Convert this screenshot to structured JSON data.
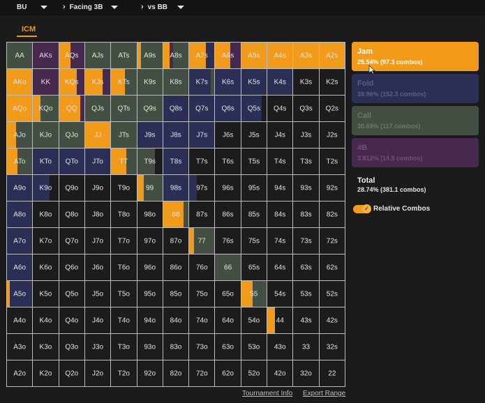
{
  "header": {
    "position": "BU",
    "scenario": "Facing 3B",
    "vs": "vs BB"
  },
  "tab": "ICM",
  "colors": {
    "jam": "#f29a1a",
    "fold": "#2b2f55",
    "call": "#444f44",
    "fourbet": "#48294e",
    "empty": "#1c1c1d"
  },
  "actions": [
    {
      "key": "jam",
      "name": "Jam",
      "pct": "25.54% (97.3 combos)",
      "bg": "#f29a1a",
      "fg": "#ffffff"
    },
    {
      "key": "fold",
      "name": "Fold",
      "pct": "39.96% (152.3 combos)",
      "bg": "#2b2f55",
      "fg": "#5a5f88"
    },
    {
      "key": "call",
      "name": "Call",
      "pct": "30.69% (117 combos)",
      "bg": "#444f44",
      "fg": "#6c776c"
    },
    {
      "key": "fourbet",
      "name": "4B",
      "pct": "3.812% (14.5 combos)",
      "bg": "#48294e",
      "fg": "#70507a"
    }
  ],
  "total": {
    "label": "Total",
    "value": "28.74% (381.1 combos)"
  },
  "toggle": {
    "label": "Relative Combos",
    "on": true
  },
  "footer": {
    "tournament_info": "Tournament Info",
    "export_range": "Export Range"
  },
  "grid": [
    [
      {
        "label": "AA",
        "mix": [
          [
            "call",
            1
          ]
        ]
      },
      {
        "label": "AKs",
        "mix": [
          [
            "fourbet",
            1
          ]
        ]
      },
      {
        "label": "AQs",
        "mix": [
          [
            "jam",
            0.45
          ],
          [
            "fourbet",
            0.55
          ]
        ]
      },
      {
        "label": "AJs",
        "mix": [
          [
            "call",
            1
          ]
        ]
      },
      {
        "label": "ATs",
        "mix": [
          [
            "call",
            1
          ]
        ]
      },
      {
        "label": "A9s",
        "mix": [
          [
            "jam",
            0.15
          ],
          [
            "call",
            0.85
          ]
        ]
      },
      {
        "label": "A8s",
        "mix": [
          [
            "jam",
            0.25
          ],
          [
            "fourbet",
            0.15
          ],
          [
            "call",
            0.6
          ]
        ]
      },
      {
        "label": "A7s",
        "mix": [
          [
            "jam",
            0.65
          ],
          [
            "fold",
            0.35
          ]
        ]
      },
      {
        "label": "A6s",
        "mix": [
          [
            "jam",
            0.6
          ],
          [
            "fourbet",
            0.4
          ]
        ]
      },
      {
        "label": "A5s",
        "mix": [
          [
            "jam",
            1
          ]
        ]
      },
      {
        "label": "A4s",
        "mix": [
          [
            "jam",
            1
          ]
        ]
      },
      {
        "label": "A3s",
        "mix": [
          [
            "jam",
            1
          ]
        ]
      },
      {
        "label": "A2s",
        "mix": [
          [
            "jam",
            1
          ]
        ]
      }
    ],
    [
      {
        "label": "AKo",
        "mix": [
          [
            "jam",
            1
          ]
        ]
      },
      {
        "label": "KK",
        "mix": [
          [
            "fourbet",
            1
          ]
        ]
      },
      {
        "label": "KQs",
        "mix": [
          [
            "jam",
            0.7
          ],
          [
            "fourbet",
            0.3
          ]
        ]
      },
      {
        "label": "KJs",
        "mix": [
          [
            "jam",
            0.7
          ],
          [
            "fourbet",
            0.3
          ]
        ]
      },
      {
        "label": "KTs",
        "mix": [
          [
            "jam",
            0.55
          ],
          [
            "call",
            0.45
          ]
        ]
      },
      {
        "label": "K9s",
        "mix": [
          [
            "call",
            1
          ]
        ]
      },
      {
        "label": "K8s",
        "mix": [
          [
            "call",
            1
          ]
        ]
      },
      {
        "label": "K7s",
        "mix": [
          [
            "fold",
            0.85
          ],
          [
            "call",
            0.15
          ]
        ]
      },
      {
        "label": "K6s",
        "mix": [
          [
            "fold",
            1
          ]
        ]
      },
      {
        "label": "K5s",
        "mix": [
          [
            "fold",
            1
          ]
        ]
      },
      {
        "label": "K4s",
        "mix": [
          [
            "fold",
            1
          ]
        ]
      },
      {
        "label": "K3s",
        "mix": []
      },
      {
        "label": "K2s",
        "mix": []
      }
    ],
    [
      {
        "label": "AQo",
        "mix": [
          [
            "jam",
            1
          ]
        ]
      },
      {
        "label": "KQo",
        "mix": [
          [
            "jam",
            0.3
          ],
          [
            "call",
            0.7
          ]
        ]
      },
      {
        "label": "QQ",
        "mix": [
          [
            "jam",
            0.85
          ],
          [
            "fourbet",
            0.15
          ]
        ]
      },
      {
        "label": "QJs",
        "mix": [
          [
            "call",
            1
          ]
        ]
      },
      {
        "label": "QTs",
        "mix": [
          [
            "call",
            1
          ]
        ]
      },
      {
        "label": "Q9s",
        "mix": [
          [
            "call",
            1
          ]
        ]
      },
      {
        "label": "Q8s",
        "mix": [
          [
            "fold",
            1
          ]
        ]
      },
      {
        "label": "Q7s",
        "mix": [
          [
            "fold",
            1
          ]
        ]
      },
      {
        "label": "Q6s",
        "mix": [
          [
            "fold",
            1
          ]
        ]
      },
      {
        "label": "Q5s",
        "mix": [
          [
            "fold",
            0.8
          ]
        ]
      },
      {
        "label": "Q4s",
        "mix": []
      },
      {
        "label": "Q3s",
        "mix": []
      },
      {
        "label": "Q2s",
        "mix": []
      }
    ],
    [
      {
        "label": "AJo",
        "mix": [
          [
            "jam",
            0.35
          ],
          [
            "call",
            0.65
          ]
        ]
      },
      {
        "label": "KJo",
        "mix": [
          [
            "call",
            1
          ]
        ]
      },
      {
        "label": "QJo",
        "mix": [
          [
            "call",
            1
          ]
        ]
      },
      {
        "label": "JJ",
        "mix": [
          [
            "jam",
            1
          ]
        ]
      },
      {
        "label": "JTs",
        "mix": [
          [
            "call",
            1
          ]
        ]
      },
      {
        "label": "J9s",
        "mix": [
          [
            "fold",
            1
          ]
        ]
      },
      {
        "label": "J8s",
        "mix": [
          [
            "fold",
            1
          ]
        ]
      },
      {
        "label": "J7s",
        "mix": [
          [
            "fold",
            1
          ]
        ]
      },
      {
        "label": "J6s",
        "mix": []
      },
      {
        "label": "J5s",
        "mix": []
      },
      {
        "label": "J4s",
        "mix": []
      },
      {
        "label": "J3s",
        "mix": []
      },
      {
        "label": "J2s",
        "mix": []
      }
    ],
    [
      {
        "label": "ATo",
        "mix": [
          [
            "jam",
            0.4
          ],
          [
            "call",
            0.6
          ]
        ]
      },
      {
        "label": "KTo",
        "mix": [
          [
            "fold",
            1
          ]
        ]
      },
      {
        "label": "QTo",
        "mix": [
          [
            "fold",
            1
          ]
        ]
      },
      {
        "label": "JTo",
        "mix": [
          [
            "fold",
            1
          ]
        ]
      },
      {
        "label": "TT",
        "mix": [
          [
            "jam",
            0.6
          ],
          [
            "call",
            0.4
          ]
        ]
      },
      {
        "label": "T9s",
        "mix": [
          [
            "call",
            0.7
          ]
        ]
      },
      {
        "label": "T8s",
        "mix": [
          [
            "fold",
            1
          ]
        ]
      },
      {
        "label": "T7s",
        "mix": []
      },
      {
        "label": "T6s",
        "mix": []
      },
      {
        "label": "T5s",
        "mix": []
      },
      {
        "label": "T4s",
        "mix": []
      },
      {
        "label": "T3s",
        "mix": []
      },
      {
        "label": "T2s",
        "mix": []
      }
    ],
    [
      {
        "label": "A9o",
        "mix": [
          [
            "fold",
            1
          ]
        ]
      },
      {
        "label": "K9o",
        "mix": [
          [
            "fold",
            0.65
          ]
        ]
      },
      {
        "label": "Q9o",
        "mix": []
      },
      {
        "label": "J9o",
        "mix": []
      },
      {
        "label": "T9o",
        "mix": []
      },
      {
        "label": "99",
        "mix": [
          [
            "jam",
            0.25
          ],
          [
            "call",
            0.75
          ]
        ]
      },
      {
        "label": "98s",
        "mix": [
          [
            "fold",
            1
          ]
        ]
      },
      {
        "label": "97s",
        "mix": [
          [
            "fold",
            0.3
          ]
        ]
      },
      {
        "label": "96s",
        "mix": []
      },
      {
        "label": "95s",
        "mix": []
      },
      {
        "label": "94s",
        "mix": []
      },
      {
        "label": "93s",
        "mix": []
      },
      {
        "label": "92s",
        "mix": []
      }
    ],
    [
      {
        "label": "A8o",
        "mix": [
          [
            "fold",
            1
          ]
        ]
      },
      {
        "label": "K8o",
        "mix": []
      },
      {
        "label": "Q8o",
        "mix": []
      },
      {
        "label": "J8o",
        "mix": []
      },
      {
        "label": "T8o",
        "mix": []
      },
      {
        "label": "98o",
        "mix": []
      },
      {
        "label": "88",
        "mix": [
          [
            "jam",
            0.8
          ],
          [
            "call",
            0.2
          ]
        ]
      },
      {
        "label": "87s",
        "mix": []
      },
      {
        "label": "86s",
        "mix": []
      },
      {
        "label": "85s",
        "mix": []
      },
      {
        "label": "84s",
        "mix": []
      },
      {
        "label": "83s",
        "mix": []
      },
      {
        "label": "82s",
        "mix": []
      }
    ],
    [
      {
        "label": "A7o",
        "mix": [
          [
            "fold",
            1
          ]
        ]
      },
      {
        "label": "K7o",
        "mix": []
      },
      {
        "label": "Q7o",
        "mix": []
      },
      {
        "label": "J7o",
        "mix": []
      },
      {
        "label": "T7o",
        "mix": []
      },
      {
        "label": "97o",
        "mix": []
      },
      {
        "label": "87o",
        "mix": []
      },
      {
        "label": "77",
        "mix": [
          [
            "jam",
            0.2
          ],
          [
            "call",
            0.8
          ]
        ]
      },
      {
        "label": "76s",
        "mix": []
      },
      {
        "label": "75s",
        "mix": []
      },
      {
        "label": "74s",
        "mix": []
      },
      {
        "label": "73s",
        "mix": []
      },
      {
        "label": "72s",
        "mix": []
      }
    ],
    [
      {
        "label": "A6o",
        "mix": [
          [
            "fold",
            1
          ]
        ]
      },
      {
        "label": "K6o",
        "mix": []
      },
      {
        "label": "Q6o",
        "mix": []
      },
      {
        "label": "J6o",
        "mix": []
      },
      {
        "label": "T6o",
        "mix": []
      },
      {
        "label": "96o",
        "mix": []
      },
      {
        "label": "86o",
        "mix": []
      },
      {
        "label": "76o",
        "mix": []
      },
      {
        "label": "66",
        "mix": [
          [
            "call",
            1
          ]
        ]
      },
      {
        "label": "65s",
        "mix": []
      },
      {
        "label": "64s",
        "mix": []
      },
      {
        "label": "63s",
        "mix": []
      },
      {
        "label": "62s",
        "mix": []
      }
    ],
    [
      {
        "label": "A5o",
        "mix": [
          [
            "jam",
            0.12
          ],
          [
            "fold",
            0.88
          ]
        ]
      },
      {
        "label": "K5o",
        "mix": []
      },
      {
        "label": "Q5o",
        "mix": []
      },
      {
        "label": "J5o",
        "mix": []
      },
      {
        "label": "T5o",
        "mix": []
      },
      {
        "label": "95o",
        "mix": []
      },
      {
        "label": "85o",
        "mix": []
      },
      {
        "label": "75o",
        "mix": []
      },
      {
        "label": "65o",
        "mix": []
      },
      {
        "label": "55",
        "mix": [
          [
            "jam",
            0.45
          ],
          [
            "call",
            0.55
          ]
        ]
      },
      {
        "label": "54s",
        "mix": []
      },
      {
        "label": "53s",
        "mix": []
      },
      {
        "label": "52s",
        "mix": []
      }
    ],
    [
      {
        "label": "A4o",
        "mix": []
      },
      {
        "label": "K4o",
        "mix": []
      },
      {
        "label": "Q4o",
        "mix": []
      },
      {
        "label": "J4o",
        "mix": []
      },
      {
        "label": "T4o",
        "mix": []
      },
      {
        "label": "94o",
        "mix": []
      },
      {
        "label": "84o",
        "mix": []
      },
      {
        "label": "74o",
        "mix": []
      },
      {
        "label": "64o",
        "mix": []
      },
      {
        "label": "54o",
        "mix": []
      },
      {
        "label": "44",
        "mix": [
          [
            "jam",
            0.3
          ]
        ]
      },
      {
        "label": "43s",
        "mix": []
      },
      {
        "label": "42s",
        "mix": []
      }
    ],
    [
      {
        "label": "A3o",
        "mix": []
      },
      {
        "label": "K3o",
        "mix": []
      },
      {
        "label": "Q3o",
        "mix": []
      },
      {
        "label": "J3o",
        "mix": []
      },
      {
        "label": "T3o",
        "mix": []
      },
      {
        "label": "93o",
        "mix": []
      },
      {
        "label": "83o",
        "mix": []
      },
      {
        "label": "73o",
        "mix": []
      },
      {
        "label": "63o",
        "mix": []
      },
      {
        "label": "53o",
        "mix": []
      },
      {
        "label": "43o",
        "mix": []
      },
      {
        "label": "33",
        "mix": []
      },
      {
        "label": "32s",
        "mix": []
      }
    ],
    [
      {
        "label": "A2o",
        "mix": []
      },
      {
        "label": "K2o",
        "mix": []
      },
      {
        "label": "Q2o",
        "mix": []
      },
      {
        "label": "J2o",
        "mix": []
      },
      {
        "label": "T2o",
        "mix": []
      },
      {
        "label": "92o",
        "mix": []
      },
      {
        "label": "82o",
        "mix": []
      },
      {
        "label": "72o",
        "mix": []
      },
      {
        "label": "62o",
        "mix": []
      },
      {
        "label": "52o",
        "mix": []
      },
      {
        "label": "42o",
        "mix": []
      },
      {
        "label": "32o",
        "mix": []
      },
      {
        "label": "22",
        "mix": []
      }
    ]
  ]
}
